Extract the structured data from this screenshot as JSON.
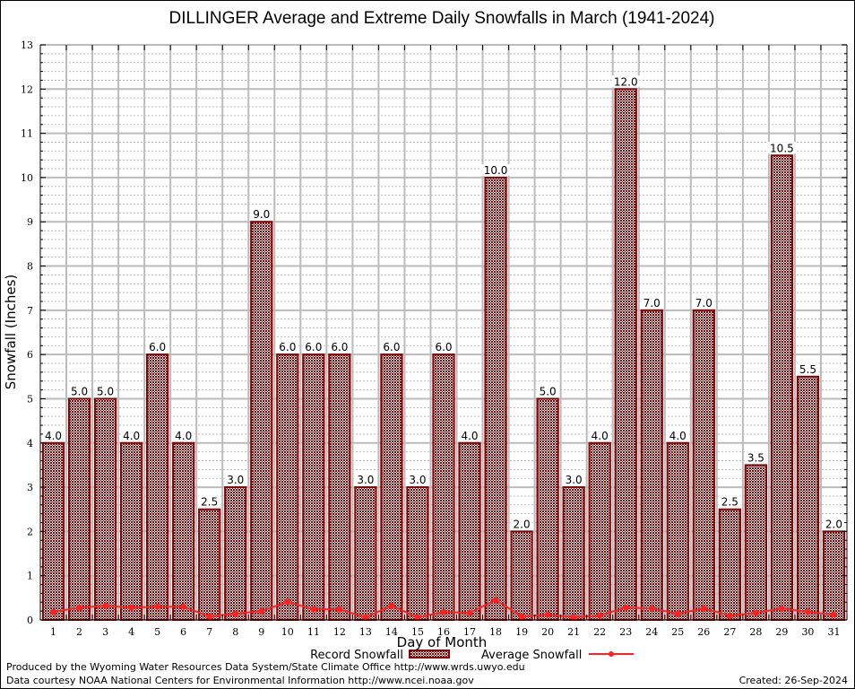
{
  "chart_data": {
    "type": "bar",
    "title": "DILLINGER Average and Extreme Daily Snowfalls in March (1941-2024)",
    "xlabel": "Day of Month",
    "ylabel": "Snowfall (Inches)",
    "ylim": [
      0,
      13
    ],
    "yticks": [
      0,
      1,
      2,
      3,
      4,
      5,
      6,
      7,
      8,
      9,
      10,
      11,
      12,
      13
    ],
    "grid": true,
    "categories": [
      "1",
      "2",
      "3",
      "4",
      "5",
      "6",
      "7",
      "8",
      "9",
      "10",
      "11",
      "12",
      "13",
      "14",
      "15",
      "16",
      "17",
      "18",
      "19",
      "20",
      "21",
      "22",
      "23",
      "24",
      "25",
      "26",
      "27",
      "28",
      "29",
      "30",
      "31"
    ],
    "series": [
      {
        "name": "Record Snowfall",
        "type": "bar",
        "color": "#8b0000",
        "values": [
          4.0,
          5.0,
          5.0,
          4.0,
          6.0,
          4.0,
          2.5,
          3.0,
          9.0,
          6.0,
          6.0,
          6.0,
          3.0,
          6.0,
          3.0,
          6.0,
          4.0,
          10.0,
          2.0,
          5.0,
          3.0,
          4.0,
          12.0,
          7.0,
          4.0,
          7.0,
          2.5,
          3.5,
          10.5,
          5.5,
          2.0
        ],
        "labels": [
          "4.0",
          "5.0",
          "5.0",
          "4.0",
          "6.0",
          "4.0",
          "2.5",
          "3.0",
          "9.0",
          "6.0",
          "6.0",
          "6.0",
          "3.0",
          "6.0",
          "3.0",
          "6.0",
          "4.0",
          "10.0",
          "2.0",
          "5.0",
          "3.0",
          "4.0",
          "12.0",
          "7.0",
          "4.0",
          "7.0",
          "2.5",
          "3.5",
          "10.5",
          "5.5",
          "2.0"
        ]
      },
      {
        "name": "Average Snowfall",
        "type": "line",
        "color": "#ff2020",
        "values": [
          0.18,
          0.28,
          0.32,
          0.28,
          0.3,
          0.3,
          0.08,
          0.14,
          0.2,
          0.41,
          0.24,
          0.24,
          0.06,
          0.32,
          0.06,
          0.18,
          0.16,
          0.45,
          0.08,
          0.12,
          0.06,
          0.1,
          0.28,
          0.26,
          0.14,
          0.26,
          0.1,
          0.16,
          0.26,
          0.18,
          0.12
        ]
      }
    ],
    "legend": "bottom-center"
  },
  "footer": {
    "produced_by": "Produced by the Wyoming Water Resources Data System/State Climate Office http://www.wrds.uwyo.edu",
    "data_courtesy": "Data courtesy NOAA National Centers for Environmental Information http://www.ncei.noaa.gov",
    "created": "Created: 26-Sep-2024"
  }
}
